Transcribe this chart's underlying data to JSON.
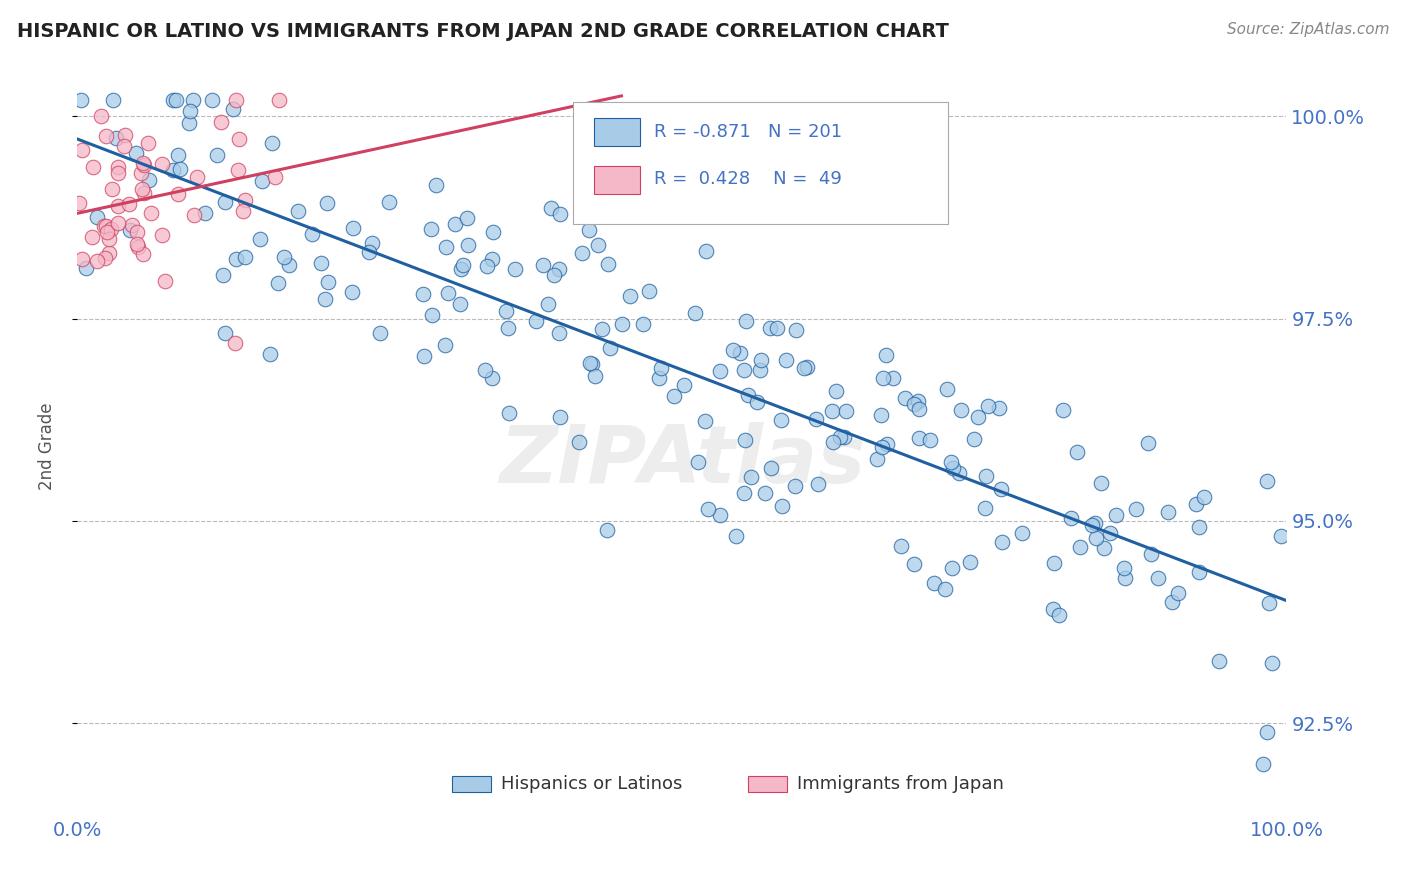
{
  "title": "HISPANIC OR LATINO VS IMMIGRANTS FROM JAPAN 2ND GRADE CORRELATION CHART",
  "source_text": "Source: ZipAtlas.com",
  "ylabel": "2nd Grade",
  "watermark": "ZIPAtlas",
  "x_min": 0.0,
  "x_max": 1.0,
  "y_min": 0.9135,
  "y_max": 1.005,
  "y_ticks": [
    0.925,
    0.95,
    0.975,
    1.0
  ],
  "y_tick_labels": [
    "92.5%",
    "95.0%",
    "97.5%",
    "100.0%"
  ],
  "x_tick_labels": [
    "0.0%",
    "100.0%"
  ],
  "legend_R1": "-0.871",
  "legend_N1": "201",
  "legend_R2": "0.428",
  "legend_N2": "49",
  "blue_color": "#a8cce8",
  "pink_color": "#f4b8c8",
  "line_blue": "#2060a0",
  "line_pink": "#d04060",
  "grid_color": "#bbbbbb",
  "label_color": "#4472c4"
}
